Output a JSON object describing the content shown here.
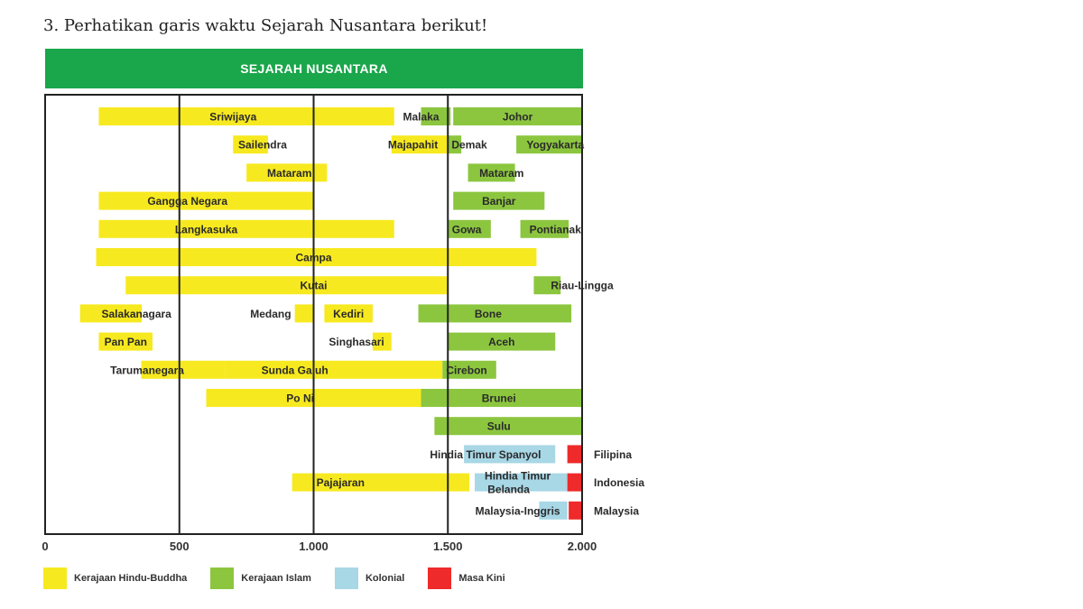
{
  "question": "3.  Perhatikan garis waktu Sejarah Nusantara  berikut!",
  "chart_data": {
    "type": "bar",
    "title": "SEJARAH NUSANTARA",
    "xlim": [
      0,
      2000
    ],
    "ticks": [
      {
        "value": 0,
        "label": "0"
      },
      {
        "value": 500,
        "label": "500"
      },
      {
        "value": 1000,
        "label": "1.000"
      },
      {
        "value": 1500,
        "label": "1.500"
      },
      {
        "value": 2000,
        "label": "2.000"
      }
    ],
    "colors": {
      "hindu": "#f7e91f",
      "islam": "#8cc63f",
      "kolonial": "#a8d7e6",
      "kini": "#ee2a2a"
    },
    "legend": [
      {
        "key": "hindu",
        "label": "Kerajaan Hindu-Buddha"
      },
      {
        "key": "islam",
        "label": "Kerajaan Islam"
      },
      {
        "key": "kolonial",
        "label": "Kolonial"
      },
      {
        "key": "kini",
        "label": "Masa Kini"
      }
    ],
    "bars": [
      {
        "label": "Sriwijaya",
        "cat": "hindu",
        "row": 0,
        "start": 200,
        "end": 1300,
        "label_at": 700
      },
      {
        "label": "Malaka",
        "cat": "islam",
        "row": 0,
        "start": 1400,
        "end": 1510,
        "label_at": 1400
      },
      {
        "label": "Johor",
        "cat": "islam",
        "row": 0,
        "start": 1520,
        "end": 2000,
        "label_at": 1760
      },
      {
        "label": "Sailendra",
        "cat": "hindu",
        "row": 1,
        "start": 700,
        "end": 830,
        "label_at": 810
      },
      {
        "label": "Majapahit",
        "cat": "hindu",
        "row": 1,
        "start": 1290,
        "end": 1500,
        "label_at": 1370
      },
      {
        "label": "Demak",
        "cat": "islam",
        "row": 1,
        "start": 1500,
        "end": 1550,
        "label_at": 1580
      },
      {
        "label": "Yogyakarta",
        "cat": "islam",
        "row": 1,
        "start": 1755,
        "end": 2000,
        "label_at": 1900
      },
      {
        "label": "Mataram",
        "cat": "hindu",
        "row": 2,
        "start": 750,
        "end": 1050,
        "label_at": 910
      },
      {
        "label": "Mataram",
        "cat": "islam",
        "row": 2,
        "start": 1575,
        "end": 1750,
        "label_at": 1700
      },
      {
        "label": "Gangga Negara",
        "cat": "hindu",
        "row": 3,
        "start": 200,
        "end": 1000,
        "label_at": 530
      },
      {
        "label": "Banjar",
        "cat": "islam",
        "row": 3,
        "start": 1520,
        "end": 1860,
        "label_at": 1690
      },
      {
        "label": "Langkasuka",
        "cat": "hindu",
        "row": 4,
        "start": 200,
        "end": 1300,
        "label_at": 600
      },
      {
        "label": "Gowa",
        "cat": "islam",
        "row": 4,
        "start": 1500,
        "end": 1660,
        "label_at": 1570
      },
      {
        "label": "Pontianak",
        "cat": "islam",
        "row": 4,
        "start": 1770,
        "end": 1950,
        "label_at": 1900
      },
      {
        "label": "Campa",
        "cat": "hindu",
        "row": 5,
        "start": 190,
        "end": 1830,
        "label_at": 1000
      },
      {
        "label": "Kutai",
        "cat": "hindu",
        "row": 6,
        "start": 300,
        "end": 1500,
        "label_at": 1000
      },
      {
        "label": "Riau-Lingga",
        "cat": "islam",
        "row": 6,
        "start": 1820,
        "end": 1920,
        "label_at": 2000
      },
      {
        "label": "Salakanagara",
        "cat": "hindu",
        "row": 7,
        "start": 130,
        "end": 360,
        "label_at": 340
      },
      {
        "label": "Medang",
        "cat": "hindu",
        "row": 7,
        "start": 930,
        "end": 1000,
        "label_at": 840
      },
      {
        "label": "Kediri",
        "cat": "hindu",
        "row": 7,
        "start": 1040,
        "end": 1220,
        "label_at": 1130
      },
      {
        "label": "Bone",
        "cat": "islam",
        "row": 7,
        "start": 1390,
        "end": 1960,
        "label_at": 1650
      },
      {
        "label": "Pan Pan",
        "cat": "hindu",
        "row": 8,
        "start": 200,
        "end": 400,
        "label_at": 300
      },
      {
        "label": "Singhasari",
        "cat": "hindu",
        "row": 8,
        "start": 1220,
        "end": 1290,
        "label_at": 1160
      },
      {
        "label": "Aceh",
        "cat": "islam",
        "row": 8,
        "start": 1500,
        "end": 1900,
        "label_at": 1700
      },
      {
        "label": "Tarumanegara",
        "cat": "hindu",
        "row": 9,
        "start": 358,
        "end": 670,
        "label_at": 380
      },
      {
        "label": "Sunda Galuh",
        "cat": "hindu",
        "row": 9,
        "start": 670,
        "end": 1480,
        "label_at": 930
      },
      {
        "label": "Cirebon",
        "cat": "islam",
        "row": 9,
        "start": 1480,
        "end": 1680,
        "label_at": 1570
      },
      {
        "label": "Po Ni",
        "cat": "hindu",
        "row": 10,
        "start": 600,
        "end": 1400,
        "label_at": 950
      },
      {
        "label": "Brunei",
        "cat": "islam",
        "row": 10,
        "start": 1400,
        "end": 2000,
        "label_at": 1690
      },
      {
        "label": "Sulu",
        "cat": "islam",
        "row": 11,
        "start": 1450,
        "end": 2000,
        "label_at": 1690
      },
      {
        "label": "Hindia Timur Spanyol",
        "cat": "kolonial",
        "row": 12,
        "start": 1560,
        "end": 1900,
        "label_at": 1640
      },
      {
        "label": "",
        "cat": "kini",
        "row": 12,
        "start": 1945,
        "end": 2000
      },
      {
        "label": "Pajajaran",
        "cat": "hindu",
        "row": 13,
        "start": 920,
        "end": 1580,
        "label_at": 1100
      },
      {
        "label": "Hindia Timur Belanda",
        "cat": "kolonial",
        "row": 13,
        "start": 1600,
        "end": 1945,
        "label_at": 1760,
        "label2": "Belanda"
      },
      {
        "label": "",
        "cat": "kini",
        "row": 13,
        "start": 1945,
        "end": 2000
      },
      {
        "label": "Malaysia-Inggris",
        "cat": "kolonial",
        "row": 14,
        "start": 1840,
        "end": 1945,
        "label_at": 1760
      },
      {
        "label": "",
        "cat": "kini",
        "row": 14,
        "start": 1950,
        "end": 2000
      }
    ],
    "outside_labels": [
      {
        "text": "Filipina",
        "row": 12
      },
      {
        "text": "Indonesia",
        "row": 13
      },
      {
        "text": "Malaysia",
        "row": 14
      }
    ]
  }
}
